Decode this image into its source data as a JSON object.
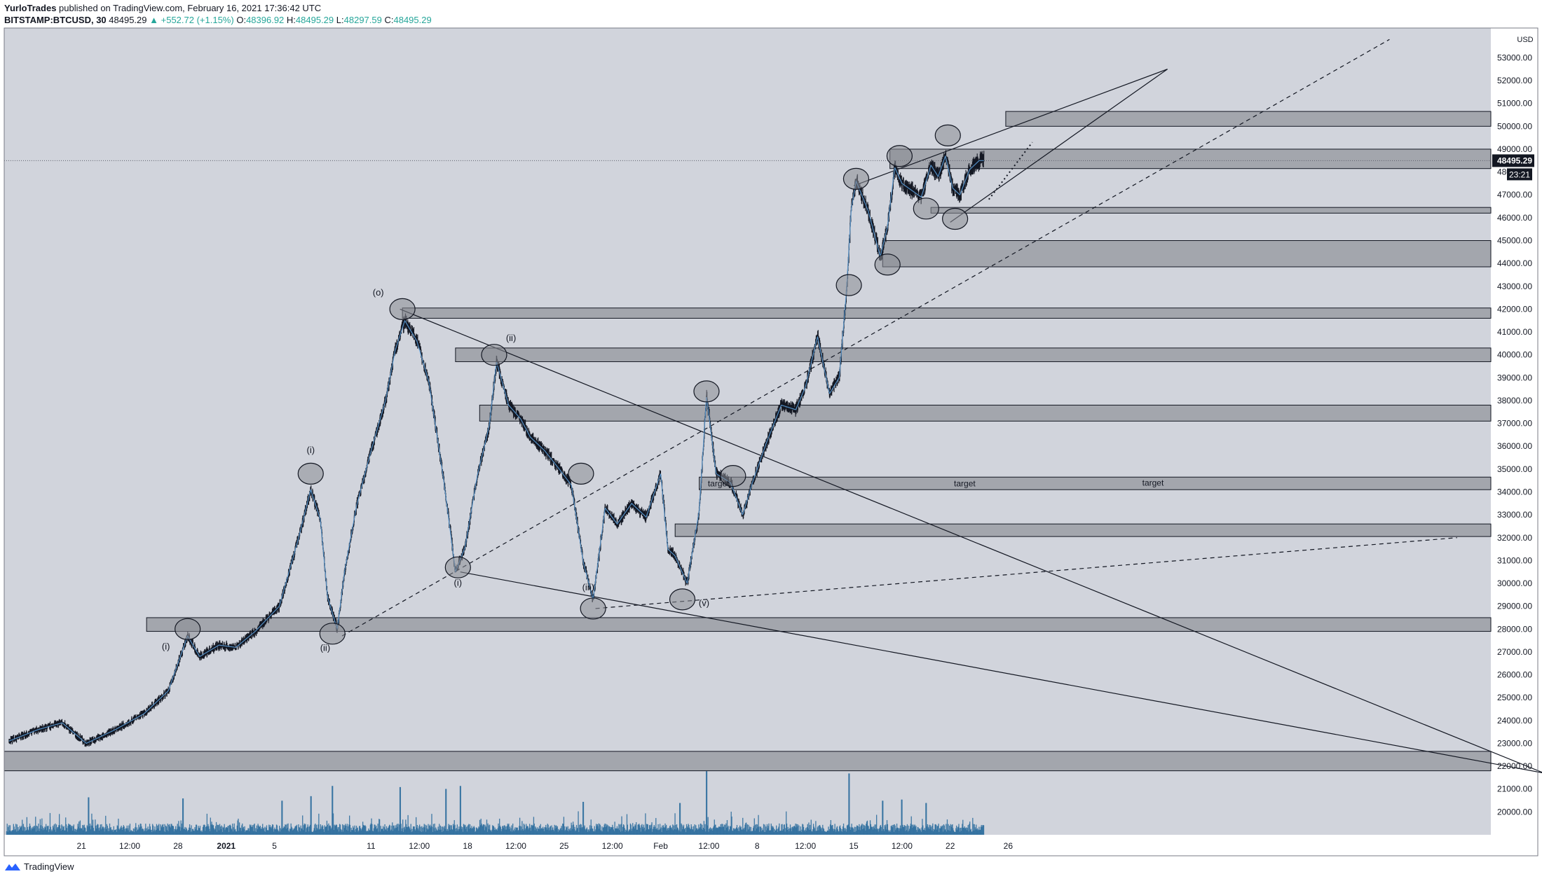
{
  "header": {
    "author": "YurloTrades",
    "published_text": "published on TradingView.com, February 16, 2021 17:36:42 UTC",
    "symbol": "BITSTAMP:BTCUSD, 30",
    "last": "48495.29",
    "change": "▲ +552.72 (+1.15%)",
    "o_label": "O:",
    "o_value": "48396.92",
    "h_label": "H:",
    "h_value": "48495.29",
    "l_label": "L:",
    "l_value": "48297.59",
    "c_label": "C:",
    "c_value": "48495.29"
  },
  "footer": {
    "brand": "TradingView"
  },
  "colors": {
    "plot_bg": "#d1d4dc",
    "zone": "#a3a6ad",
    "candle": "#131722",
    "volume": "#2f6f9f",
    "ma": "#5b9bd5"
  },
  "chart_data": {
    "type": "line",
    "scale": "linear",
    "currency_label": "USD",
    "current_price_label": "48495.29",
    "countdown_label": "23:21",
    "ylim": [
      19000,
      54300
    ],
    "xlim": [
      -1.6,
      29.2
    ],
    "y_ticks": [
      20000,
      21000,
      22000,
      23000,
      24000,
      25000,
      26000,
      27000,
      28000,
      29000,
      30000,
      31000,
      32000,
      33000,
      34000,
      35000,
      36000,
      37000,
      38000,
      39000,
      40000,
      41000,
      42000,
      43000,
      44000,
      45000,
      46000,
      47000,
      48000,
      49000,
      50000,
      51000,
      52000,
      53000
    ],
    "y_tick_labels": [
      "20000.00",
      "21000.00",
      "22000.00",
      "23000.00",
      "24000.00",
      "25000.00",
      "26000.00",
      "27000.00",
      "28000.00",
      "29000.00",
      "30000.00",
      "31000.00",
      "32000.00",
      "33000.00",
      "34000.00",
      "35000.00",
      "36000.00",
      "37000.00",
      "38000.00",
      "39000.00",
      "40000.00",
      "41000.00",
      "42000.00",
      "43000.00",
      "44000.00",
      "45000.00",
      "46000.00",
      "47000.00",
      "48000.00",
      "49000.00",
      "50000.00",
      "51000.00",
      "52000.00",
      "53000.00"
    ],
    "x_ticks": [
      {
        "label": "21",
        "x": 0
      },
      {
        "label": "12:00",
        "x": 1.0
      },
      {
        "label": "28",
        "x": 2.0
      },
      {
        "label": "2021",
        "x": 3.0
      },
      {
        "label": "5",
        "x": 4.0
      },
      {
        "label": "11",
        "x": 6.0
      },
      {
        "label": "12:00",
        "x": 7.0
      },
      {
        "label": "18",
        "x": 8.0
      },
      {
        "label": "12:00",
        "x": 9.0
      },
      {
        "label": "25",
        "x": 10.0
      },
      {
        "label": "12:00",
        "x": 11.0
      },
      {
        "label": "Feb",
        "x": 12.0
      },
      {
        "label": "12:00",
        "x": 13.0
      },
      {
        "label": "8",
        "x": 14.0
      },
      {
        "label": "12:00",
        "x": 15.0
      },
      {
        "label": "15",
        "x": 16.0
      },
      {
        "label": "12:00",
        "x": 17.0
      },
      {
        "label": "22",
        "x": 18.0
      },
      {
        "label": "26",
        "x": 19.2
      }
    ],
    "price_path": [
      [
        -1.5,
        23100
      ],
      [
        -0.9,
        23600
      ],
      [
        -0.4,
        23900
      ],
      [
        0.1,
        23000
      ],
      [
        0.7,
        23600
      ],
      [
        1.3,
        24300
      ],
      [
        1.8,
        25300
      ],
      [
        2.2,
        27700
      ],
      [
        2.45,
        26800
      ],
      [
        2.85,
        27300
      ],
      [
        3.2,
        27200
      ],
      [
        3.6,
        27900
      ],
      [
        4.1,
        29000
      ],
      [
        4.5,
        32000
      ],
      [
        4.75,
        34100
      ],
      [
        4.95,
        32800
      ],
      [
        5.1,
        29400
      ],
      [
        5.3,
        28000
      ],
      [
        5.45,
        30500
      ],
      [
        5.7,
        33400
      ],
      [
        6.0,
        35800
      ],
      [
        6.3,
        38000
      ],
      [
        6.5,
        40200
      ],
      [
        6.7,
        41500
      ],
      [
        6.95,
        40600
      ],
      [
        7.2,
        38800
      ],
      [
        7.5,
        34600
      ],
      [
        7.75,
        30500
      ],
      [
        7.95,
        31600
      ],
      [
        8.2,
        34700
      ],
      [
        8.45,
        36900
      ],
      [
        8.6,
        39700
      ],
      [
        8.85,
        37800
      ],
      [
        9.1,
        37200
      ],
      [
        9.3,
        36400
      ],
      [
        9.6,
        35800
      ],
      [
        9.9,
        35000
      ],
      [
        10.15,
        34300
      ],
      [
        10.4,
        30900
      ],
      [
        10.6,
        29300
      ],
      [
        10.85,
        33300
      ],
      [
        11.1,
        32600
      ],
      [
        11.4,
        33500
      ],
      [
        11.7,
        32900
      ],
      [
        12.0,
        34800
      ],
      [
        12.15,
        31500
      ],
      [
        12.3,
        31200
      ],
      [
        12.55,
        30000
      ],
      [
        12.8,
        33200
      ],
      [
        12.95,
        38200
      ],
      [
        13.15,
        34800
      ],
      [
        13.45,
        34400
      ],
      [
        13.7,
        33000
      ],
      [
        13.9,
        34400
      ],
      [
        14.2,
        36200
      ],
      [
        14.5,
        37800
      ],
      [
        14.8,
        37600
      ],
      [
        15.0,
        38600
      ],
      [
        15.25,
        40800
      ],
      [
        15.5,
        38300
      ],
      [
        15.7,
        39000
      ],
      [
        15.85,
        42800
      ],
      [
        15.95,
        46400
      ],
      [
        16.05,
        47600
      ],
      [
        16.3,
        46300
      ],
      [
        16.55,
        44300
      ],
      [
        16.7,
        45600
      ],
      [
        16.85,
        48200
      ],
      [
        17.0,
        47500
      ],
      [
        17.2,
        47200
      ],
      [
        17.4,
        46900
      ],
      [
        17.6,
        48300
      ],
      [
        17.75,
        47800
      ],
      [
        17.9,
        48700
      ],
      [
        18.05,
        47300
      ],
      [
        18.2,
        47000
      ],
      [
        18.4,
        48100
      ],
      [
        18.6,
        48500
      ]
    ],
    "zones": [
      {
        "x1": -1.6,
        "x2": 29.2,
        "lo": 21800,
        "hi": 22650
      },
      {
        "x1": 1.35,
        "x2": 29.2,
        "lo": 27900,
        "hi": 28500
      },
      {
        "x1": 12.3,
        "x2": 29.2,
        "lo": 32050,
        "hi": 32600
      },
      {
        "x1": 12.8,
        "x2": 29.2,
        "lo": 34100,
        "hi": 34650,
        "label": "target"
      },
      {
        "x1": 8.25,
        "x2": 29.2,
        "lo": 37100,
        "hi": 37800
      },
      {
        "x1": 7.75,
        "x2": 29.2,
        "lo": 39700,
        "hi": 40300
      },
      {
        "x1": 6.65,
        "x2": 29.2,
        "lo": 41600,
        "hi": 42050
      },
      {
        "x1": 16.6,
        "x2": 29.2,
        "lo": 43850,
        "hi": 45000
      },
      {
        "x1": 17.6,
        "x2": 29.2,
        "lo": 46200,
        "hi": 46450
      },
      {
        "x1": 16.75,
        "x2": 29.2,
        "lo": 48150,
        "hi": 49000
      },
      {
        "x1": 19.15,
        "x2": 29.2,
        "lo": 50000,
        "hi": 50650
      }
    ],
    "zone_labels": [
      {
        "text": "target",
        "x": 13.2,
        "y": 34370
      },
      {
        "text": "target",
        "x": 18.3,
        "y": 34370
      },
      {
        "text": "target",
        "x": 22.2,
        "y": 34400
      }
    ],
    "trendlines": [
      {
        "x1": 6.6,
        "y1": 42000,
        "x2": 30.3,
        "y2": 21700,
        "dash": false
      },
      {
        "x1": 7.85,
        "y1": 30500,
        "x2": 30.3,
        "y2": 21700,
        "dash": false
      },
      {
        "x1": 5.4,
        "y1": 27700,
        "x2": 27.1,
        "y2": 53800,
        "dash": true
      },
      {
        "x1": 10.65,
        "y1": 28900,
        "x2": 28.5,
        "y2": 32000,
        "dash": true
      },
      {
        "x1": 16.0,
        "y1": 47400,
        "x2": 22.5,
        "y2": 52500,
        "dash": false
      },
      {
        "x1": 18.0,
        "y1": 45800,
        "x2": 22.5,
        "y2": 52500,
        "dash": false
      },
      {
        "x1": 18.8,
        "y1": 46800,
        "x2": 19.7,
        "y2": 49300,
        "dash": "dot"
      }
    ],
    "circles": [
      {
        "x": 2.2,
        "y": 28000
      },
      {
        "x": 4.75,
        "y": 34800
      },
      {
        "x": 5.2,
        "y": 27800
      },
      {
        "x": 6.65,
        "y": 42000
      },
      {
        "x": 7.8,
        "y": 30700
      },
      {
        "x": 8.55,
        "y": 40000
      },
      {
        "x": 10.6,
        "y": 28900
      },
      {
        "x": 10.35,
        "y": 34800
      },
      {
        "x": 12.45,
        "y": 29300
      },
      {
        "x": 12.95,
        "y": 38400
      },
      {
        "x": 13.5,
        "y": 34700
      },
      {
        "x": 15.9,
        "y": 43050
      },
      {
        "x": 16.05,
        "y": 47700
      },
      {
        "x": 16.7,
        "y": 43950
      },
      {
        "x": 16.95,
        "y": 48700
      },
      {
        "x": 17.5,
        "y": 46400
      },
      {
        "x": 17.95,
        "y": 49600
      },
      {
        "x": 18.1,
        "y": 45950
      }
    ],
    "wave_labels": [
      {
        "text": "(i)",
        "x": 1.75,
        "y": 27100
      },
      {
        "text": "(i)",
        "x": 4.75,
        "y": 35700
      },
      {
        "text": "(ii)",
        "x": 5.05,
        "y": 27050
      },
      {
        "text": "(o)",
        "x": 6.15,
        "y": 42600
      },
      {
        "text": "(i)",
        "x": 7.8,
        "y": 29900
      },
      {
        "text": "(ii)",
        "x": 8.9,
        "y": 40600
      },
      {
        "text": "(iii)",
        "x": 10.5,
        "y": 29700
      },
      {
        "text": "(v)",
        "x": 12.9,
        "y": 29000
      }
    ],
    "volume_spikes": [
      [
        0.15,
        1650
      ],
      [
        2.1,
        1600
      ],
      [
        4.15,
        1500
      ],
      [
        4.75,
        1700
      ],
      [
        5.2,
        2150
      ],
      [
        6.6,
        2100
      ],
      [
        7.55,
        2020
      ],
      [
        7.85,
        2150
      ],
      [
        10.4,
        1450
      ],
      [
        12.4,
        1400
      ],
      [
        12.95,
        2800
      ],
      [
        15.9,
        2700
      ],
      [
        16.6,
        1500
      ],
      [
        17.0,
        1550
      ],
      [
        17.5,
        1400
      ],
      [
        18.8,
        1300
      ]
    ],
    "volume_max": 3700,
    "price_end_x": 18.7,
    "volume_end_x": 18.7
  }
}
